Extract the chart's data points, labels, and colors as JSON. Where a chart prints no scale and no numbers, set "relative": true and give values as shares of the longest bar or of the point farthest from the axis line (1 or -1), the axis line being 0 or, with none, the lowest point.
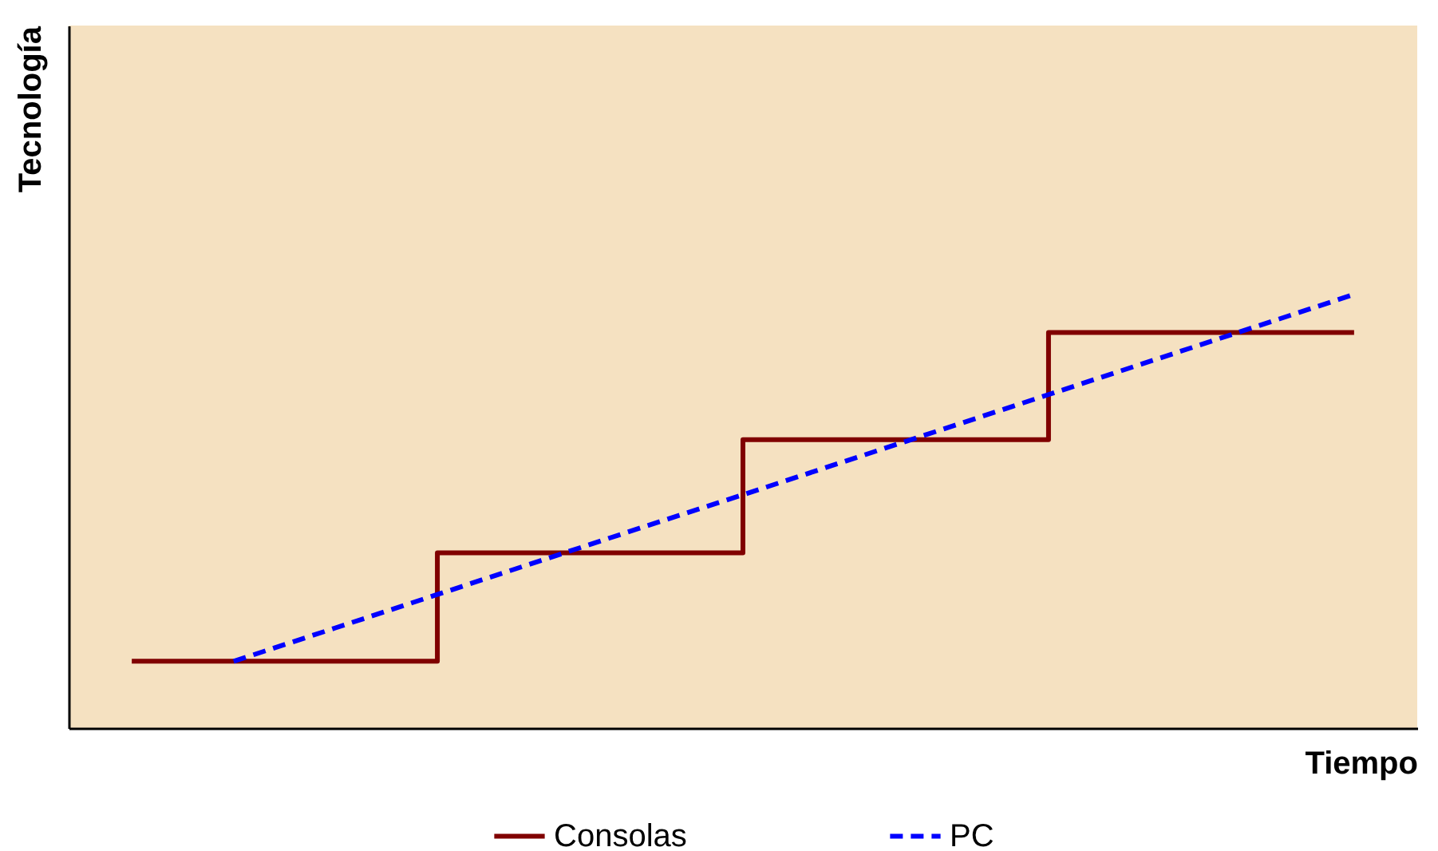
{
  "chart_data": {
    "type": "line",
    "xlabel": "Tiempo",
    "ylabel": "Tecnología",
    "relative": true,
    "legend": "bottom",
    "categories": [
      null,
      null,
      null,
      null,
      null,
      null,
      null,
      null,
      null,
      null,
      null,
      null,
      null
    ],
    "series": [
      {
        "name": "Consolas",
        "type": "step",
        "color": "#800000",
        "line_style": "solid",
        "values": [
          0.154,
          0.154,
          0.154,
          0.404,
          0.404,
          0.404,
          0.665,
          0.665,
          0.665,
          0.912,
          0.912,
          0.912,
          0.912
        ]
      },
      {
        "name": "PC",
        "type": "line",
        "color": "#0000ff",
        "line_style": "dashed",
        "values": [
          null,
          0.154,
          0.231,
          0.308,
          0.385,
          0.462,
          0.538,
          0.615,
          0.692,
          0.769,
          0.846,
          0.923,
          1.0
        ]
      }
    ]
  }
}
